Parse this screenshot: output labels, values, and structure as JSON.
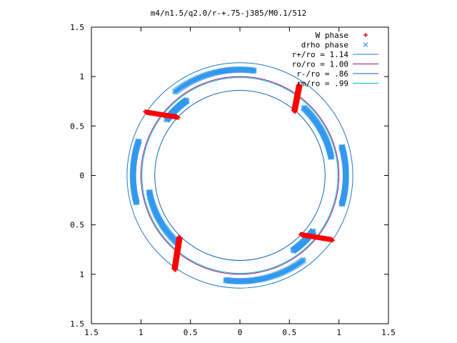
{
  "chart_data": {
    "type": "scatter",
    "title": "m4/n1.5/q2.0/r-+.75-j385/M0.1/512",
    "xlabel": "",
    "ylabel": "",
    "xlim": [
      -1.5,
      1.5
    ],
    "ylim": [
      -1.5,
      1.5
    ],
    "x_tick_labels": [
      "1.5",
      "1",
      "0.5",
      "0",
      "0.5",
      "1",
      "1.5"
    ],
    "y_tick_labels": [
      "1.5",
      "1",
      "0.5",
      "0",
      "0.5",
      "1",
      "1.5"
    ],
    "grid": false,
    "legend_position": "top-right",
    "colors": {
      "w_phase": "#ff0000",
      "drho_phase": "#3399ee",
      "r_plus": "#2277cc",
      "ro": "#aa1177",
      "r_minus": "#1166bb",
      "rm": "#00bbcc"
    },
    "legend": [
      {
        "label": "W phase",
        "marker": "+"
      },
      {
        "label": "drho phase",
        "marker": "x"
      },
      {
        "label": "r+/ro = 1.14",
        "marker": "line"
      },
      {
        "label": "ro/ro = 1.00",
        "marker": "line"
      },
      {
        "label": "r-/ro = .86",
        "marker": "line"
      },
      {
        "label": "rm/ro = .99",
        "marker": "line"
      }
    ],
    "circles": [
      {
        "r": 1.14
      },
      {
        "r": 1.0
      },
      {
        "r": 0.86
      },
      {
        "r": 0.99
      }
    ],
    "w_phase_segments": [
      [
        [
          0.6,
          0.91
        ],
        [
          0.55,
          0.65
        ]
      ],
      [
        [
          -0.95,
          0.64
        ],
        [
          -0.63,
          0.59
        ]
      ],
      [
        [
          -0.61,
          -0.63
        ],
        [
          -0.66,
          -0.95
        ]
      ],
      [
        [
          0.62,
          -0.6
        ],
        [
          0.93,
          -0.65
        ]
      ]
    ],
    "drho_phase_arcs": [
      {
        "r": 1.07,
        "start_deg": 82,
        "end_deg": 128
      },
      {
        "r": 0.93,
        "start_deg": 143,
        "end_deg": 125
      },
      {
        "r": 1.08,
        "start_deg": 161,
        "end_deg": 195
      },
      {
        "r": 0.93,
        "start_deg": 190,
        "end_deg": 228
      },
      {
        "r": 1.07,
        "start_deg": 262,
        "end_deg": 307
      },
      {
        "r": 0.93,
        "start_deg": 323,
        "end_deg": 305
      },
      {
        "r": 1.07,
        "start_deg": 344,
        "end_deg": 376
      },
      {
        "r": 0.94,
        "start_deg": 11,
        "end_deg": 47
      }
    ]
  }
}
